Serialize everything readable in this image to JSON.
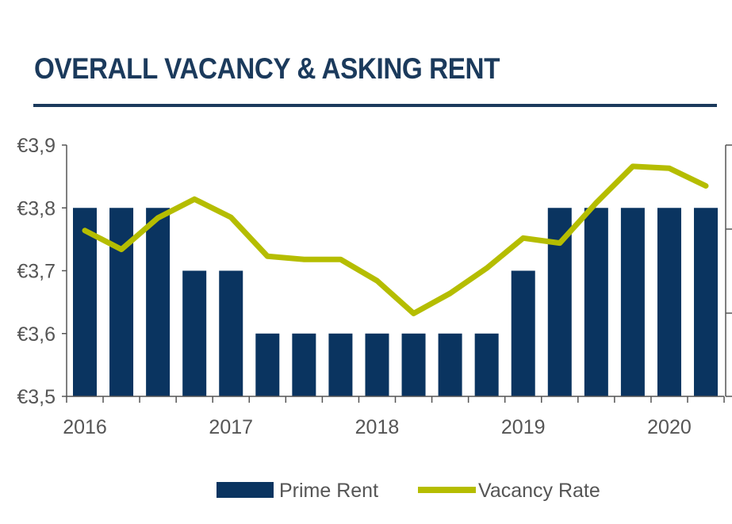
{
  "title": "OVERALL VACANCY & ASKING RENT",
  "legend": {
    "bar_label": "Prime Rent",
    "line_label": "Vacancy Rate"
  },
  "colors": {
    "title": "#1b3a5c",
    "bar": "#0a3460",
    "line": "#b5bd00",
    "axis": "#555555"
  },
  "chart_data": {
    "type": "bar",
    "title": "OVERALL VACANCY & ASKING RENT",
    "xlabel": "",
    "ylabel": "",
    "x_tick_labels": [
      "2016",
      "2017",
      "2018",
      "2019",
      "2020"
    ],
    "y_tick_labels": [
      "€3,9",
      "€3,8",
      "€3,7",
      "€3,6",
      "€3,5"
    ],
    "ylim": [
      3.5,
      3.9
    ],
    "grid": false,
    "legend_position": "bottom",
    "series": [
      {
        "name": "Prime Rent",
        "type": "bar",
        "values": [
          3.8,
          3.8,
          3.8,
          3.7,
          3.7,
          3.6,
          3.6,
          3.6,
          3.6,
          3.6,
          3.6,
          3.6,
          3.7,
          3.8,
          3.8,
          3.8,
          3.8,
          3.8
        ]
      },
      {
        "name": "Vacancy Rate",
        "type": "line",
        "axis": "secondary (unlabeled)",
        "values": [
          3.764,
          3.734,
          3.784,
          3.814,
          3.785,
          3.723,
          3.718,
          3.718,
          3.684,
          3.632,
          3.664,
          3.704,
          3.752,
          3.744,
          3.808,
          3.866,
          3.863,
          3.835
        ]
      }
    ]
  }
}
